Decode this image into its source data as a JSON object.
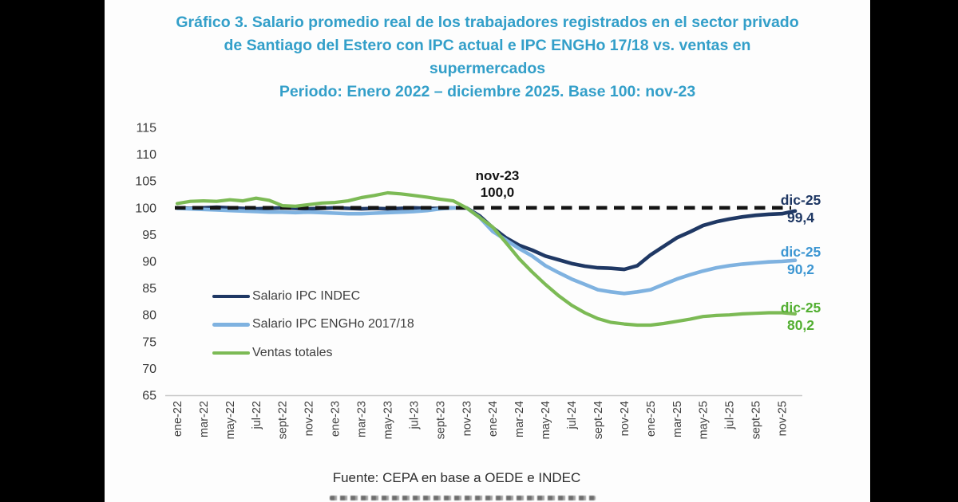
{
  "title": {
    "line1": "Gráfico 3. Salario promedio real de los trabajadores registrados en el sector privado",
    "line2": "de Santiago del Estero con IPC actual e IPC ENGHo 17/18 vs. ventas en",
    "line3": "supermercados",
    "line4": "Periodo: Enero 2022 – diciembre 2025. Base 100: nov-23"
  },
  "footer": {
    "source": "Fuente: CEPA en base a OEDE e INDEC"
  },
  "colors": {
    "title": "#339fc9",
    "navy": "#1f3864",
    "light_blue": "#7fb2e0",
    "green": "#7cba55",
    "reference_dash": "#141414",
    "axis_line": "#c8c8c8"
  },
  "chart_data": {
    "type": "line",
    "title": "Salario promedio real vs ventas en supermercados, Santiago del Estero",
    "xlabel": "",
    "ylabel": "",
    "ylim": [
      65,
      115
    ],
    "y_ticks": [
      115,
      110,
      105,
      100,
      95,
      90,
      85,
      80,
      75,
      70,
      65
    ],
    "x_ticks_shown_every": 2,
    "grid": "off",
    "legend_position": "inside-left",
    "reference_line": {
      "y": 100,
      "style": "dashed",
      "color": "#141414"
    },
    "x": [
      "ene-22",
      "feb-22",
      "mar-22",
      "abr-22",
      "may-22",
      "jun-22",
      "jul-22",
      "ago-22",
      "sept-22",
      "oct-22",
      "nov-22",
      "dic-22",
      "ene-23",
      "feb-23",
      "mar-23",
      "abr-23",
      "may-23",
      "jun-23",
      "jul-23",
      "ago-23",
      "sept-23",
      "oct-23",
      "nov-23",
      "dic-23",
      "ene-24",
      "feb-24",
      "mar-24",
      "abr-24",
      "may-24",
      "jun-24",
      "jul-24",
      "ago-24",
      "sept-24",
      "oct-24",
      "nov-24",
      "dic-24",
      "ene-25",
      "feb-25",
      "mar-25",
      "abr-25",
      "may-25",
      "jun-25",
      "jul-25",
      "ago-25",
      "sept-25",
      "oct-25",
      "nov-25",
      "dic-25"
    ],
    "series": [
      {
        "name": "Salario IPC INDEC",
        "color": "#1f3864",
        "width": 4.6,
        "values": [
          100.0,
          99.9,
          100.0,
          100.1,
          100.0,
          99.9,
          99.8,
          99.9,
          100.0,
          99.9,
          99.8,
          99.9,
          100.0,
          99.9,
          99.8,
          99.9,
          99.8,
          99.9,
          100.0,
          99.9,
          99.9,
          100.0,
          100.0,
          98.5,
          96.3,
          94.4,
          93.0,
          92.1,
          91.0,
          90.3,
          89.6,
          89.1,
          88.8,
          88.7,
          88.5,
          89.2,
          91.2,
          92.8,
          94.4,
          95.5,
          96.7,
          97.4,
          97.9,
          98.3,
          98.6,
          98.8,
          98.9,
          99.4
        ]
      },
      {
        "name": "Salario IPC ENGHo 2017/18",
        "color": "#7fb2e0",
        "width": 4.6,
        "values": [
          99.9,
          99.8,
          99.7,
          99.6,
          99.5,
          99.4,
          99.3,
          99.2,
          99.2,
          99.1,
          99.2,
          99.1,
          99.0,
          98.9,
          98.9,
          99.0,
          99.1,
          99.2,
          99.3,
          99.5,
          99.8,
          100.0,
          100.0,
          98.2,
          95.6,
          94.0,
          92.4,
          91.0,
          89.2,
          87.9,
          86.7,
          85.7,
          84.7,
          84.3,
          84.0,
          84.3,
          84.7,
          85.7,
          86.7,
          87.5,
          88.2,
          88.8,
          89.2,
          89.5,
          89.7,
          89.9,
          90.0,
          90.2
        ]
      },
      {
        "name": "Ventas totales",
        "color": "#7cba55",
        "width": 4.2,
        "values": [
          100.8,
          101.2,
          101.3,
          101.2,
          101.5,
          101.3,
          101.8,
          101.4,
          100.4,
          100.3,
          100.6,
          100.9,
          101.0,
          101.3,
          101.9,
          102.3,
          102.8,
          102.6,
          102.3,
          102.0,
          101.6,
          101.3,
          100.0,
          98.2,
          96.4,
          93.5,
          90.5,
          88.0,
          85.7,
          83.6,
          81.8,
          80.4,
          79.3,
          78.6,
          78.3,
          78.1,
          78.1,
          78.4,
          78.8,
          79.2,
          79.7,
          79.9,
          80.0,
          80.2,
          80.3,
          80.4,
          80.4,
          80.2
        ]
      }
    ],
    "annotations": {
      "peak": {
        "line1": "nov-23",
        "line2": "100,0"
      },
      "end": [
        {
          "date": "dic-25",
          "value": "99,4",
          "series": "Salario IPC INDEC"
        },
        {
          "date": "dic-25",
          "value": "90,2",
          "series": "Salario IPC ENGHo 2017/18"
        },
        {
          "date": "dic-25",
          "value": "80,2",
          "series": "Ventas totales"
        }
      ]
    }
  }
}
